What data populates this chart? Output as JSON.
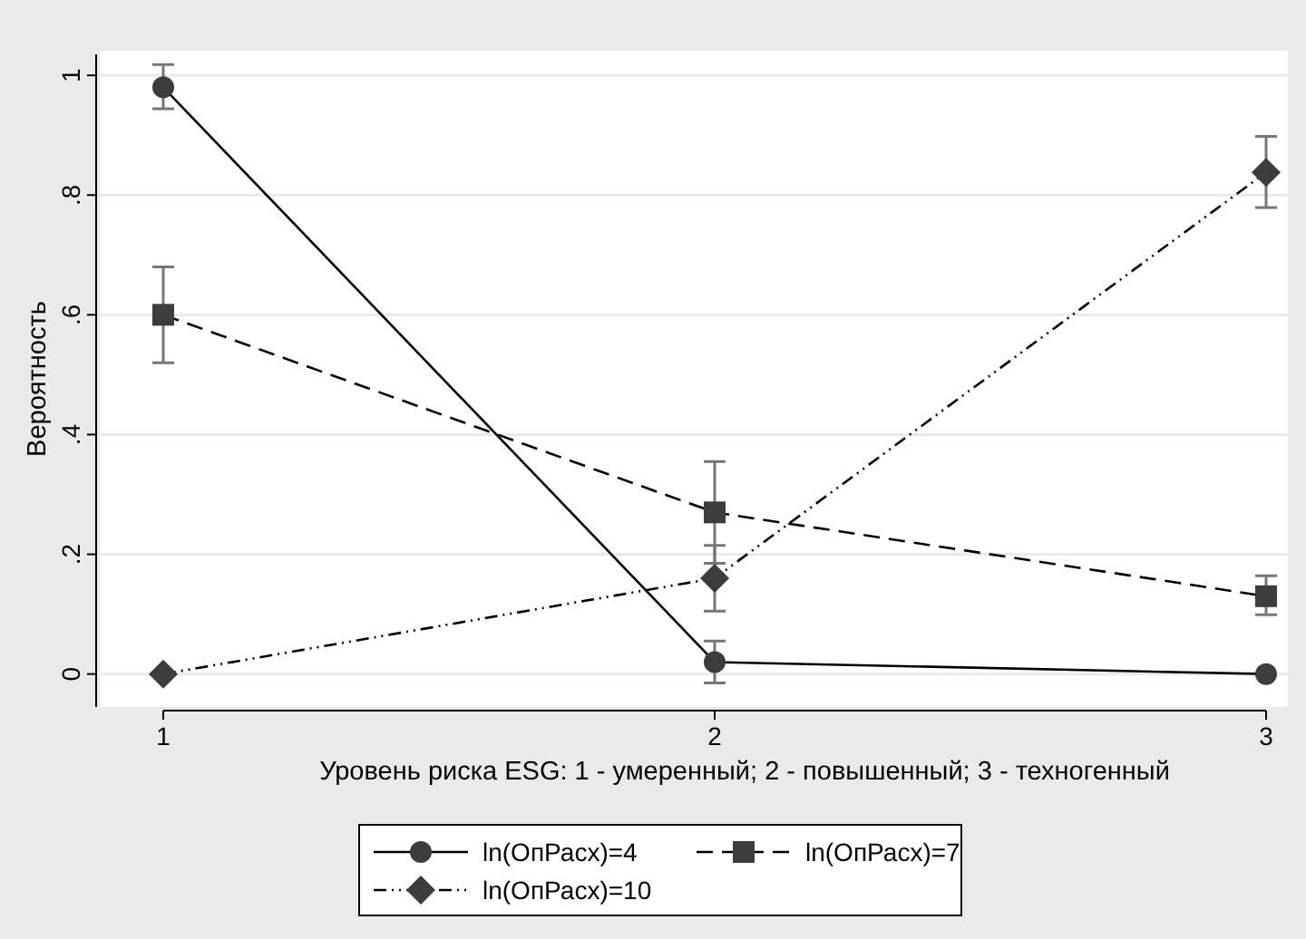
{
  "chart_data": {
    "type": "line",
    "xlabel": "Уровень риска ESG: 1 - умеренный; 2 - повышенный; 3 - техногенный",
    "ylabel": "Вероятность",
    "x": [
      1,
      2,
      3
    ],
    "xlim": [
      1,
      3
    ],
    "xticks": [
      1,
      2,
      3
    ],
    "ylim": [
      -0.055,
      1.035
    ],
    "yticks": [
      {
        "value": 0,
        "label": "0"
      },
      {
        "value": 0.2,
        "label": ".2"
      },
      {
        "value": 0.4,
        "label": ".4"
      },
      {
        "value": 0.6,
        "label": ".6"
      },
      {
        "value": 0.8,
        "label": ".8"
      },
      {
        "value": 1,
        "label": "1"
      }
    ],
    "grid": "y",
    "legend": "bottom",
    "series": [
      {
        "name": "ln(ОпРасх)=4",
        "color": "#3c3c3c",
        "marker": "circle",
        "line_style": "solid",
        "values": [
          0.98,
          0.02,
          0
        ],
        "errors": [
          [
            0.944,
            1.018
          ],
          [
            -0.015,
            0.055
          ],
          null
        ]
      },
      {
        "name": "ln(ОпРасх)=7",
        "color": "#3c3c3c",
        "marker": "square",
        "line_style": "dashed",
        "values": [
          0.6,
          0.27,
          0.13
        ],
        "errors": [
          [
            0.52,
            0.68
          ],
          [
            0.185,
            0.355
          ],
          [
            0.099,
            0.164
          ]
        ]
      },
      {
        "name": "ln(ОпРасх)=10",
        "color": "#3c3c3c",
        "marker": "diamond",
        "line_style": "dotted",
        "values": [
          0,
          0.16,
          0.838
        ],
        "errors": [
          null,
          [
            0.105,
            0.215
          ],
          [
            0.779,
            0.898
          ]
        ]
      }
    ]
  }
}
